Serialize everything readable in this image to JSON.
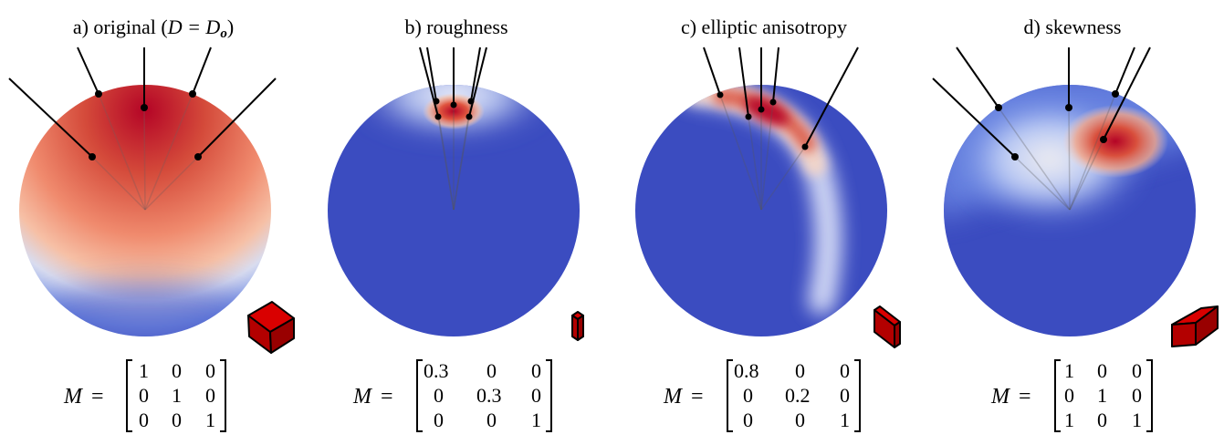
{
  "panels": [
    {
      "title_prefix": "a) original (",
      "title_math": "D = D",
      "title_sub": "o",
      "title_suffix": ")",
      "matrix_label": "M",
      "matrix_eq": "=",
      "matrix": [
        [
          "1",
          "0",
          "0"
        ],
        [
          "0",
          "1",
          "0"
        ],
        [
          "0",
          "0",
          "1"
        ]
      ],
      "colors": {
        "low": "#3b4cc0",
        "mid": "#f2f2f2",
        "high": "#b40426"
      }
    },
    {
      "title": "b) roughness",
      "matrix_label": "M",
      "matrix_eq": "=",
      "matrix": [
        [
          "0.3",
          "0",
          "0"
        ],
        [
          "0",
          "0.3",
          "0"
        ],
        [
          "0",
          "0",
          "1"
        ]
      ]
    },
    {
      "title": "c) elliptic anisotropy",
      "matrix_label": "M",
      "matrix_eq": "=",
      "matrix": [
        [
          "0.8",
          "0",
          "0"
        ],
        [
          "0",
          "0.2",
          "0"
        ],
        [
          "0",
          "0",
          "1"
        ]
      ]
    },
    {
      "title": "d) skewness",
      "matrix_label": "M",
      "matrix_eq": "=",
      "matrix": [
        [
          "1",
          "0",
          "0"
        ],
        [
          "0",
          "1",
          "0"
        ],
        [
          "1",
          "0",
          "1"
        ]
      ]
    }
  ],
  "style": {
    "sphere_blue": "#3b4cc0",
    "hot_red": "#b40426",
    "cube_red": "#c00000"
  }
}
